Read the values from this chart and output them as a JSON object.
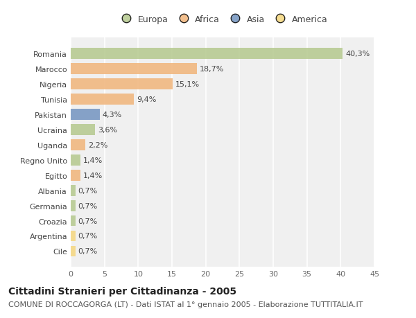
{
  "countries": [
    "Romania",
    "Marocco",
    "Nigeria",
    "Tunisia",
    "Pakistan",
    "Ucraina",
    "Uganda",
    "Regno Unito",
    "Egitto",
    "Albania",
    "Germania",
    "Croazia",
    "Argentina",
    "Cile"
  ],
  "values": [
    40.3,
    18.7,
    15.1,
    9.4,
    4.3,
    3.6,
    2.2,
    1.4,
    1.4,
    0.7,
    0.7,
    0.7,
    0.7,
    0.7
  ],
  "labels": [
    "40,3%",
    "18,7%",
    "15,1%",
    "9,4%",
    "4,3%",
    "3,6%",
    "2,2%",
    "1,4%",
    "1,4%",
    "0,7%",
    "0,7%",
    "0,7%",
    "0,7%",
    "0,7%"
  ],
  "colors": [
    "#b5c98e",
    "#f0b47a",
    "#f0b47a",
    "#f0b47a",
    "#7294c0",
    "#b5c98e",
    "#f0b47a",
    "#b5c98e",
    "#f0b47a",
    "#b5c98e",
    "#b5c98e",
    "#b5c98e",
    "#f5d77e",
    "#f5d77e"
  ],
  "legend_labels": [
    "Europa",
    "Africa",
    "Asia",
    "America"
  ],
  "legend_colors": [
    "#b5c98e",
    "#f0b47a",
    "#7294c0",
    "#f5d77e"
  ],
  "title": "Cittadini Stranieri per Cittadinanza - 2005",
  "subtitle": "COMUNE DI ROCCAGORGA (LT) - Dati ISTAT al 1° gennaio 2005 - Elaborazione TUTTITALIA.IT",
  "xlim": [
    0,
    45
  ],
  "xticks": [
    0,
    5,
    10,
    15,
    20,
    25,
    30,
    35,
    40,
    45
  ],
  "plot_bg_color": "#f0f0f0",
  "fig_bg_color": "#ffffff",
  "grid_color": "#ffffff",
  "bar_height": 0.72,
  "title_fontsize": 10,
  "subtitle_fontsize": 8,
  "label_fontsize": 8,
  "tick_fontsize": 8,
  "legend_fontsize": 9
}
